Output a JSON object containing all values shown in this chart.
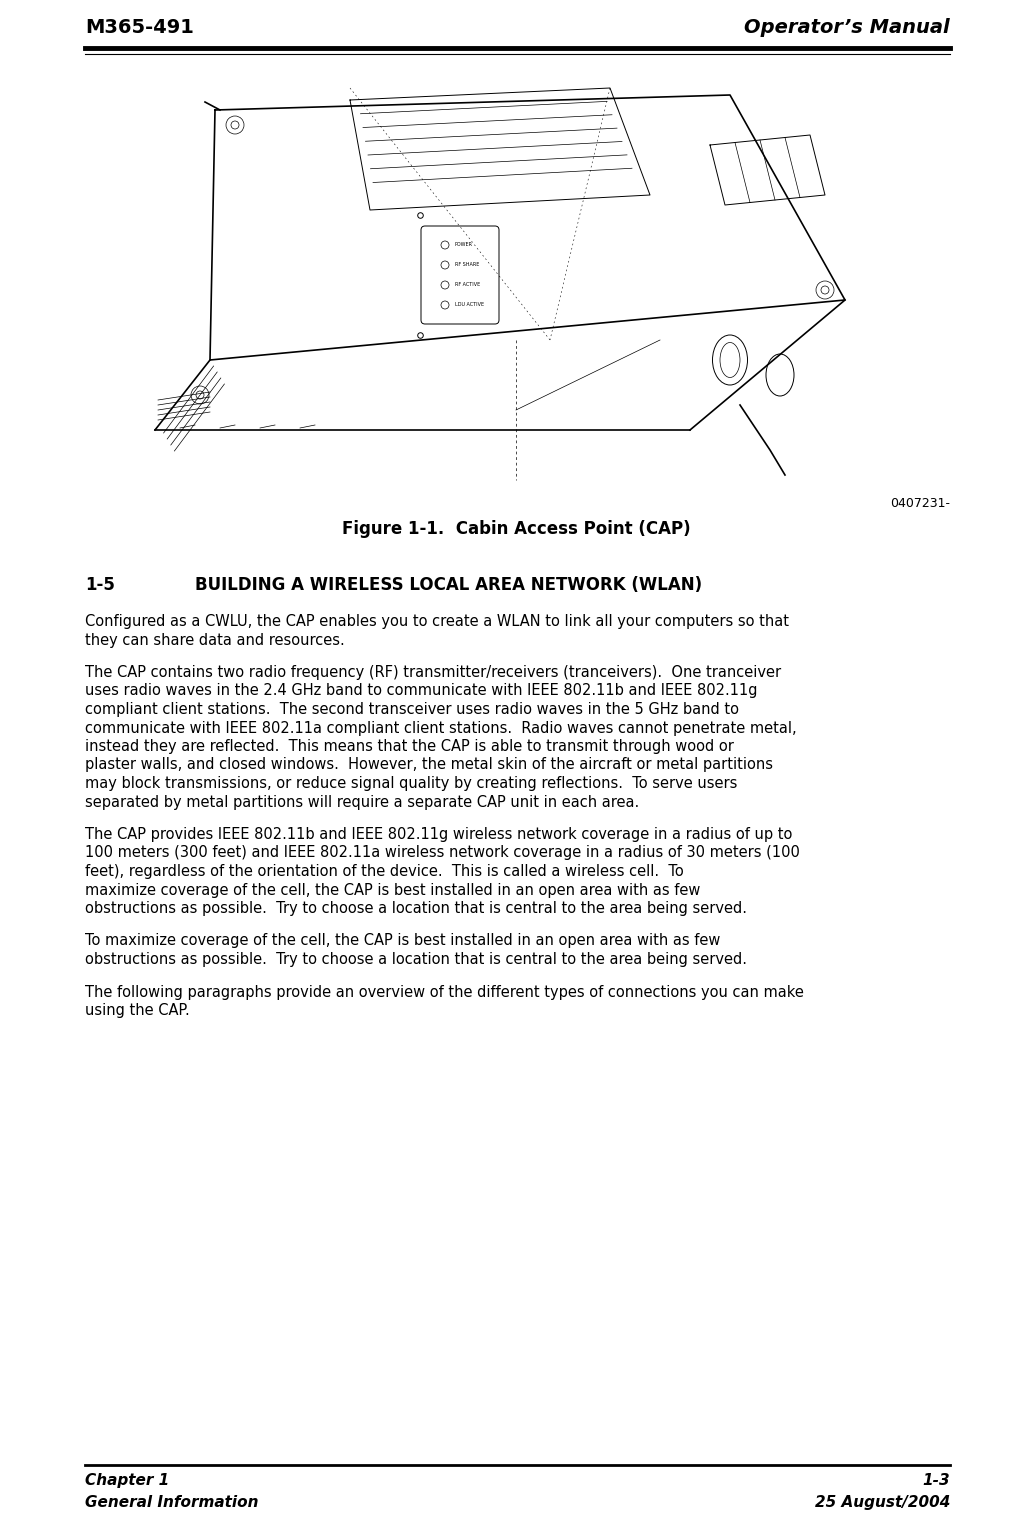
{
  "header_left": "M365-491",
  "header_right": "Operator’s Manual",
  "figure_label": "0407231-",
  "figure_caption": "Figure 1-1.  Cabin Access Point (CAP)",
  "section_num": "1-5",
  "section_title": "BUILDING A WIRELESS LOCAL AREA NETWORK (WLAN)",
  "paragraphs": [
    "Configured as a CWLU, the CAP enables you to create a WLAN to link all your computers so that they can share data and resources.",
    "The CAP contains two radio frequency (RF) transmitter/receivers (tranceivers).  One tranceiver uses radio waves in the 2.4 GHz band to communicate with IEEE 802.11b and IEEE 802.11g compliant client stations.  The second transceiver uses radio waves in the 5 GHz band to communicate with IEEE 802.11a compliant client stations.  Radio waves cannot penetrate metal, instead they are reflected.  This means that the CAP is able to transmit through wood or plaster walls, and closed windows.  However, the metal skin of the aircraft or metal partitions may block transmissions, or reduce signal quality by creating reflections.  To serve users separated by metal partitions will require a separate CAP unit in each area.",
    "The CAP provides IEEE 802.11b and IEEE 802.11g wireless network coverage in a radius of up to 100 meters (300 feet) and IEEE 802.11a wireless network coverage in a radius of 30 meters (100 feet), regardless of the orientation of the device.  This is called a wireless cell.  To maximize coverage of the cell, the CAP is best installed in an open area with as few obstructions as possible.  Try to choose a location that is central to the area being served.",
    "To maximize coverage of the cell, the CAP is best installed in an open area with as few obstructions as possible.  Try to choose a location that is central to the area being served.",
    "The following paragraphs provide an overview of the different types of connections you can make using the CAP."
  ],
  "footer_left_line1": "Chapter 1",
  "footer_left_line2": "General Information",
  "footer_right_line1": "1-3",
  "footer_right_line2": "25 August/2004",
  "bg_color": "#ffffff",
  "text_color": "#000000",
  "line_color": "#000000"
}
